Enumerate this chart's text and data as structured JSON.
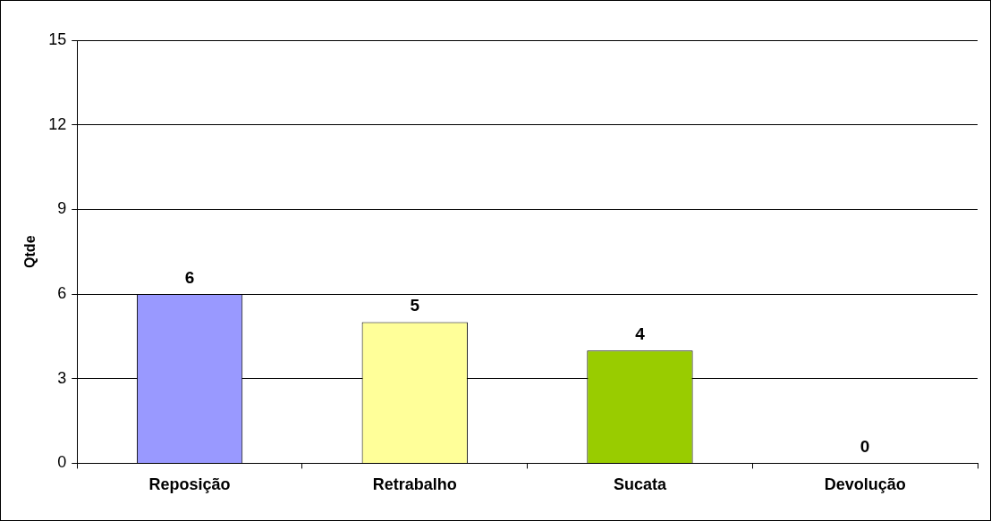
{
  "chart_data": {
    "type": "bar",
    "ylabel": "Qtde",
    "categories": [
      "Reposição",
      "Retrabalho",
      "Sucata",
      "Devolução"
    ],
    "values": [
      6,
      5,
      4,
      0
    ],
    "colors": [
      "#9999ff",
      "#ffff99",
      "#99cc00",
      "#ff8080"
    ],
    "ylim": [
      0,
      15
    ],
    "yticks": [
      0,
      3,
      6,
      9,
      12,
      15
    ],
    "grid": "y",
    "data_labels": true,
    "legend": false
  }
}
